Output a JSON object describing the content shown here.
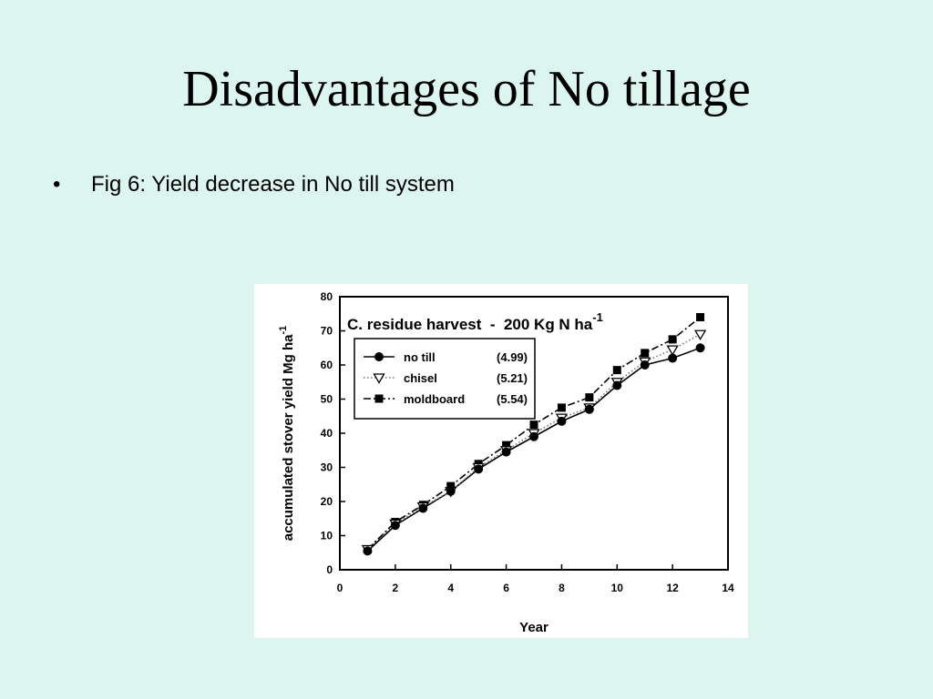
{
  "slide": {
    "title": "Disadvantages of No tillage",
    "bullet_symbol": "•",
    "bullet_text": "Fig 6: Yield decrease in No till system"
  },
  "chart_data": {
    "type": "line",
    "annotation": "C. residue harvest  -  200 Kg N ha",
    "annotation_superscript": "-1",
    "xlabel": "Year",
    "ylabel": "accumulated stover yield  Mg ha",
    "ylabel_superscript": "-1",
    "xlim": [
      0,
      14
    ],
    "ylim": [
      0,
      80
    ],
    "xticks": [
      0,
      2,
      4,
      6,
      8,
      10,
      12,
      14
    ],
    "yticks": [
      0,
      10,
      20,
      30,
      40,
      50,
      60,
      70,
      80
    ],
    "grid": false,
    "legend_placement": "upper-left",
    "x": [
      1,
      2,
      3,
      4,
      5,
      6,
      7,
      8,
      9,
      10,
      11,
      12,
      13
    ],
    "series": [
      {
        "name": "no till",
        "legend_value": "(4.99)",
        "marker": "filled-circle",
        "line_style": "solid",
        "values": [
          5.5,
          13,
          18,
          23,
          29.5,
          34.5,
          39,
          43.5,
          47,
          54,
          60,
          62,
          65
        ]
      },
      {
        "name": "chisel",
        "legend_value": "(5.21)",
        "marker": "open-triangle-down",
        "line_style": "dotted",
        "values": [
          6,
          13.5,
          18.5,
          23,
          30,
          35,
          40,
          44.5,
          47.5,
          55,
          61,
          64.5,
          69
        ]
      },
      {
        "name": "moldboard",
        "legend_value": "(5.54)",
        "marker": "filled-square",
        "line_style": "dash-dot",
        "values": [
          6,
          14,
          19,
          24.5,
          31,
          36.5,
          42.5,
          47.5,
          50.5,
          58.5,
          63.5,
          67.5,
          74
        ]
      }
    ]
  }
}
